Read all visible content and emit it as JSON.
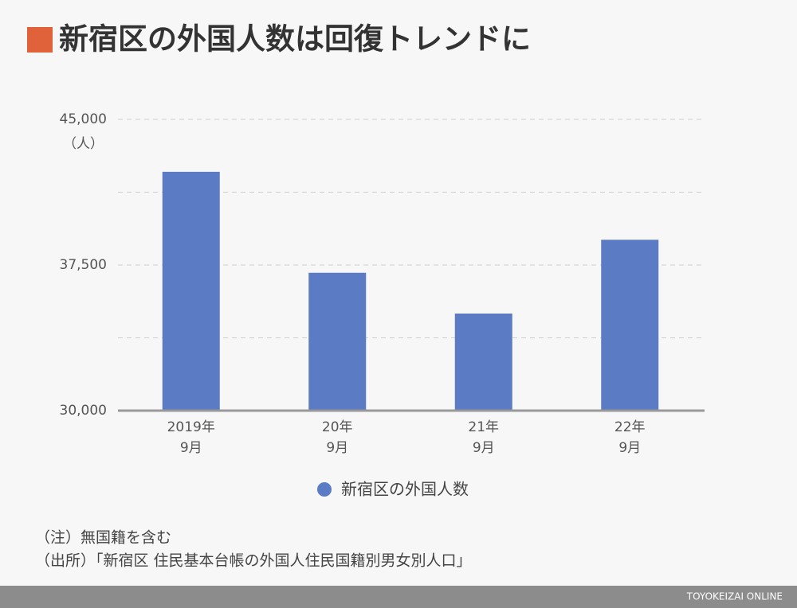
{
  "chart_data": {
    "type": "bar",
    "title": "新宿区の外国人数は回復トレンドに",
    "unit_label": "（人）",
    "categories": [
      [
        "2019年",
        "9月"
      ],
      [
        "20年",
        "9月"
      ],
      [
        "21年",
        "9月"
      ],
      [
        "22年",
        "9月"
      ]
    ],
    "series": [
      {
        "name": "新宿区の外国人数",
        "color": "#5b7bc4",
        "values": [
          42300,
          37100,
          35000,
          38800
        ]
      }
    ],
    "ylim": [
      30000,
      45000
    ],
    "yticks": [
      {
        "value": 30000,
        "label": "30,000"
      },
      {
        "value": 33750,
        "label": null
      },
      {
        "value": 37500,
        "label": "37,500"
      },
      {
        "value": 41250,
        "label": null
      },
      {
        "value": 45000,
        "label": "45,000"
      }
    ],
    "grid": true,
    "legend": "bottom"
  },
  "notes": [
    "（注）無国籍を含む",
    "（出所）「新宿区 住民基本台帳の外国人住民国籍別男女別人口」"
  ],
  "footer": "TOYOKEIZAI ONLINE"
}
